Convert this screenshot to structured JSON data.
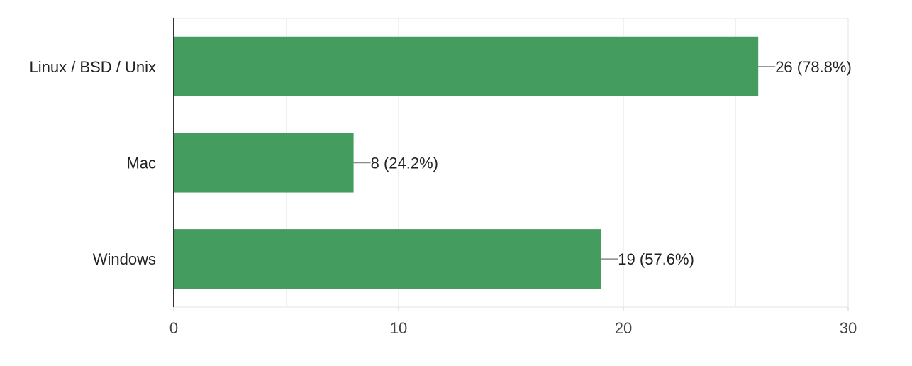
{
  "chart_data": {
    "type": "bar",
    "orientation": "horizontal",
    "categories": [
      "Linux / BSD / Unix",
      "Mac",
      "Windows"
    ],
    "values": [
      26,
      8,
      19
    ],
    "data_labels": [
      "26 (78.8%)",
      "8 (24.2%)",
      "19 (57.6%)"
    ],
    "x_ticks": [
      0,
      10,
      20,
      30
    ],
    "xlim": [
      0,
      30
    ],
    "grid": true,
    "bar_color": "#459c5f",
    "title": "",
    "xlabel": "",
    "ylabel": ""
  }
}
